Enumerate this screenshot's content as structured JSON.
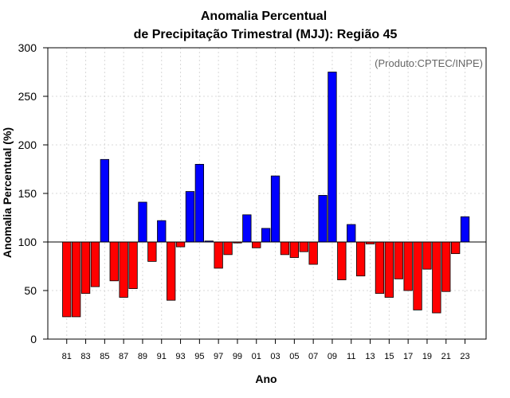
{
  "chart_data": {
    "type": "bar",
    "title_line1": "Anomalia Percentual",
    "title_line2": "de Precipitação Trimestral (MJJ): Região 45",
    "xlabel": "Ano",
    "ylabel": "Anomalia Percentual (%)",
    "credit": "(Produto:CPTEC/INPE)",
    "baseline": 100,
    "ylim": [
      0,
      300
    ],
    "yticks": [
      "0",
      "50",
      "100",
      "150",
      "200",
      "250",
      "300"
    ],
    "xtick_labels": [
      "81",
      "83",
      "85",
      "87",
      "89",
      "91",
      "93",
      "95",
      "97",
      "99",
      "01",
      "03",
      "05",
      "07",
      "09",
      "11",
      "13",
      "15",
      "17",
      "19",
      "21",
      "23"
    ],
    "categories": [
      "81",
      "82",
      "83",
      "84",
      "85",
      "86",
      "87",
      "88",
      "89",
      "90",
      "91",
      "92",
      "93",
      "94",
      "95",
      "96",
      "97",
      "98",
      "99",
      "00",
      "01",
      "02",
      "03",
      "04",
      "05",
      "06",
      "07",
      "08",
      "09",
      "10",
      "11",
      "12",
      "13",
      "14",
      "15",
      "16",
      "17",
      "18",
      "19",
      "20",
      "21",
      "22",
      "23"
    ],
    "values": [
      23,
      23,
      47,
      54,
      185,
      60,
      43,
      52,
      141,
      80,
      122,
      40,
      95,
      152,
      180,
      101,
      73,
      87,
      99,
      128,
      94,
      114,
      168,
      87,
      84,
      90,
      77,
      148,
      275,
      61,
      118,
      65,
      98,
      47,
      43,
      62,
      50,
      30,
      72,
      27,
      49,
      88,
      126
    ],
    "colors": {
      "above": "#0000ff",
      "below": "#ff0000",
      "grid": "#d8d8d8"
    },
    "grid": true
  }
}
